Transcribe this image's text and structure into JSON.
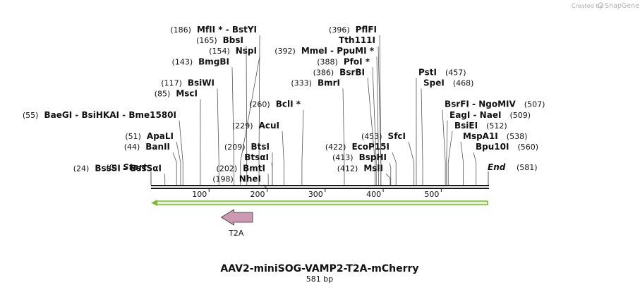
{
  "credit": {
    "prefix": "Created by",
    "brand": "SnapGene"
  },
  "sequence": {
    "name": "AAV2-miniSOG-VAMP2-T2A-mCherry",
    "length_label": "581 bp",
    "length": 581
  },
  "scale": {
    "ticks": [
      100,
      200,
      300,
      400,
      500
    ]
  },
  "ends": {
    "start_label": "Start",
    "start_pos_label": "(0)",
    "end_label": "End",
    "end_pos_label": "(581)"
  },
  "sites": [
    {
      "side": "left",
      "label": "MfII * - BstYI",
      "pos_label": "(186)",
      "pos": 186
    },
    {
      "side": "left",
      "label": "BbsI",
      "pos_label": "(165)",
      "pos": 165
    },
    {
      "side": "left",
      "label": "NspI",
      "pos_label": "(154)",
      "pos": 154
    },
    {
      "side": "left",
      "label": "BmgBI",
      "pos_label": "(143)",
      "pos": 143
    },
    {
      "side": "left",
      "label": "BsiWI",
      "pos_label": "(117)",
      "pos": 117
    },
    {
      "side": "left",
      "label": "MscI",
      "pos_label": "(85)",
      "pos": 85
    },
    {
      "side": "left",
      "label": "BclI *",
      "pos_label": "(260)",
      "pos": 260
    },
    {
      "side": "left",
      "label": "BaeGI - BsiHKAI - Bme1580I",
      "pos_label": "(55)",
      "pos": 55
    },
    {
      "side": "left",
      "label": "AcuI",
      "pos_label": "(229)",
      "pos": 229
    },
    {
      "side": "left",
      "label": "ApaLI",
      "pos_label": "(51)",
      "pos": 51
    },
    {
      "side": "left",
      "label": "BanII",
      "pos_label": "(44)",
      "pos": 44
    },
    {
      "side": "left",
      "label": "BtsI",
      "pos_label": "(209)",
      "pos": 209
    },
    {
      "side": "left",
      "label": "BtsαI",
      "pos_label": "",
      "pos": 209
    },
    {
      "side": "left",
      "label": "BssSI - BssSαI",
      "pos_label": "(24)",
      "pos": 24
    },
    {
      "side": "left",
      "label": "BmtI",
      "pos_label": "(202)",
      "pos": 202
    },
    {
      "side": "left",
      "label": "NheI",
      "pos_label": "(198)",
      "pos": 198
    },
    {
      "side": "left",
      "label": "PflFI",
      "pos_label": "(396)",
      "pos": 396
    },
    {
      "side": "left",
      "label": "Tth111I",
      "pos_label": "",
      "pos": 396
    },
    {
      "side": "left",
      "label": "MmeI - PpuMI *",
      "pos_label": "(392)",
      "pos": 392
    },
    {
      "side": "left",
      "label": "PfoI *",
      "pos_label": "(388)",
      "pos": 388
    },
    {
      "side": "left",
      "label": "BsrBI",
      "pos_label": "(386)",
      "pos": 386
    },
    {
      "side": "left",
      "label": "BmrI",
      "pos_label": "(333)",
      "pos": 333
    },
    {
      "side": "left",
      "label": "SfcI",
      "pos_label": "(453)",
      "pos": 453
    },
    {
      "side": "left",
      "label": "EcoP15I",
      "pos_label": "(422)",
      "pos": 422
    },
    {
      "side": "left",
      "label": "BspHI",
      "pos_label": "(413)",
      "pos": 413
    },
    {
      "side": "left",
      "label": "MslI",
      "pos_label": "(412)",
      "pos": 412
    },
    {
      "side": "right",
      "label": "PstI",
      "pos_label": "(457)",
      "pos": 457
    },
    {
      "side": "right",
      "label": "SpeI",
      "pos_label": "(468)",
      "pos": 468
    },
    {
      "side": "right",
      "label": "BsrFI - NgoMIV",
      "pos_label": "(507)",
      "pos": 507
    },
    {
      "side": "right",
      "label": "EagI - NaeI",
      "pos_label": "(509)",
      "pos": 509
    },
    {
      "side": "right",
      "label": "BsiEI",
      "pos_label": "(512)",
      "pos": 512
    },
    {
      "side": "right",
      "label": "MspA1I",
      "pos_label": "(538)",
      "pos": 538
    },
    {
      "side": "right",
      "label": "Bpu10I",
      "pos_label": "(560)",
      "pos": 560
    }
  ],
  "features": [
    {
      "name": "T2A",
      "direction": "reverse",
      "start": 121,
      "end": 175,
      "color": "#cc99b2"
    }
  ],
  "colors": {
    "backbone": "#1a1a1a",
    "orf_outline": "#7db83a",
    "orf_fill": "#e6f2d6",
    "t2a": "#cc99b2"
  }
}
